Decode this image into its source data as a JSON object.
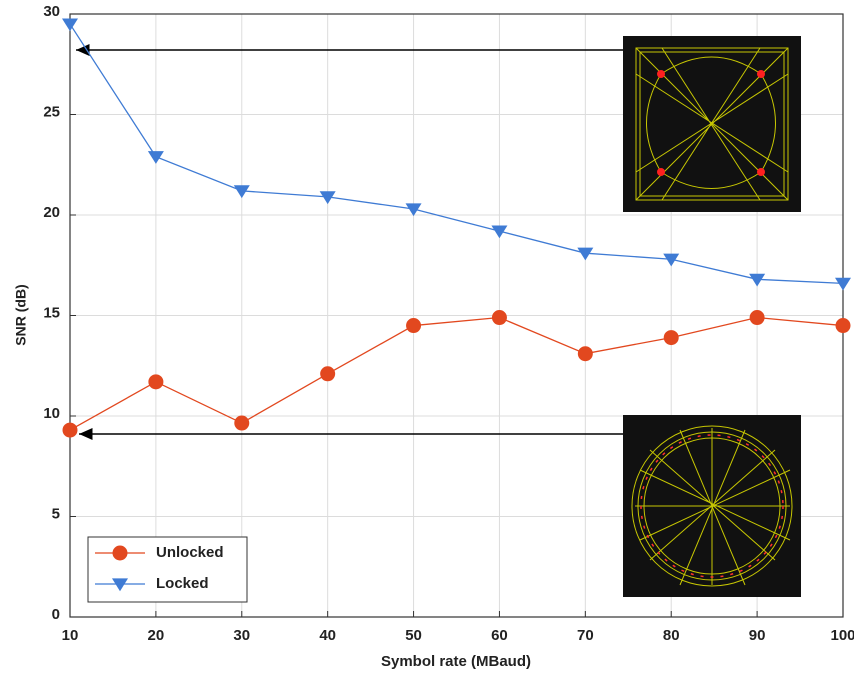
{
  "chart_data": {
    "type": "line",
    "xlabel": "Symbol rate (MBaud)",
    "ylabel": "SNR (dB)",
    "x": [
      10,
      20,
      30,
      40,
      50,
      60,
      70,
      80,
      90,
      100
    ],
    "series": [
      {
        "name": "Unlocked",
        "color": "#e2481f",
        "marker": "circle",
        "values": [
          9.3,
          11.7,
          9.65,
          12.1,
          14.5,
          14.9,
          13.1,
          13.9,
          14.9,
          14.5
        ]
      },
      {
        "name": "Locked",
        "color": "#3f7bd4",
        "marker": "triangle-down",
        "values": [
          29.5,
          22.9,
          21.2,
          20.9,
          20.3,
          19.2,
          18.1,
          17.8,
          16.8,
          16.6
        ]
      }
    ],
    "xlim": [
      10,
      100
    ],
    "xticks": [
      10,
      20,
      30,
      40,
      50,
      60,
      70,
      80,
      90,
      100
    ],
    "ylim": [
      0,
      30
    ],
    "yticks": [
      0,
      5,
      10,
      15,
      20,
      25,
      30
    ],
    "grid": true,
    "legend": "lower left"
  }
}
